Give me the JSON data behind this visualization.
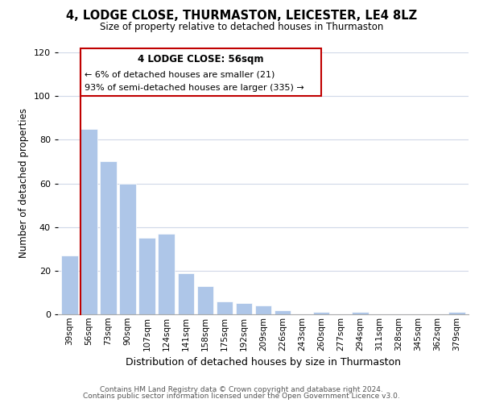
{
  "title": "4, LODGE CLOSE, THURMASTON, LEICESTER, LE4 8LZ",
  "subtitle": "Size of property relative to detached houses in Thurmaston",
  "xlabel": "Distribution of detached houses by size in Thurmaston",
  "ylabel": "Number of detached properties",
  "categories": [
    "39sqm",
    "56sqm",
    "73sqm",
    "90sqm",
    "107sqm",
    "124sqm",
    "141sqm",
    "158sqm",
    "175sqm",
    "192sqm",
    "209sqm",
    "226sqm",
    "243sqm",
    "260sqm",
    "277sqm",
    "294sqm",
    "311sqm",
    "328sqm",
    "345sqm",
    "362sqm",
    "379sqm"
  ],
  "values": [
    27,
    85,
    70,
    60,
    35,
    37,
    19,
    13,
    6,
    5,
    4,
    2,
    0,
    1,
    0,
    1,
    0,
    0,
    0,
    0,
    1
  ],
  "highlight_index": 1,
  "highlight_color": "#c00000",
  "bar_color": "#aec6e8",
  "ylim": [
    0,
    120
  ],
  "yticks": [
    0,
    20,
    40,
    60,
    80,
    100,
    120
  ],
  "annotation_title": "4 LODGE CLOSE: 56sqm",
  "annotation_line1": "← 6% of detached houses are smaller (21)",
  "annotation_line2": "93% of semi-detached houses are larger (335) →",
  "footer_line1": "Contains HM Land Registry data © Crown copyright and database right 2024.",
  "footer_line2": "Contains public sector information licensed under the Open Government Licence v3.0."
}
